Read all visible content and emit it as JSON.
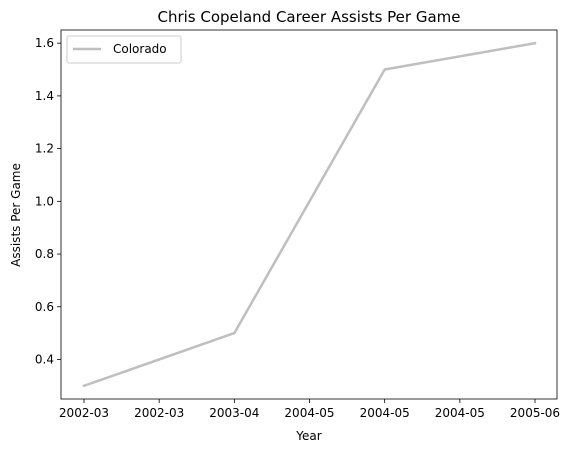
{
  "chart_data": {
    "type": "line",
    "title": "Chris Copeland Career Assists Per Game",
    "xlabel": "Year",
    "ylabel": "Assists Per Game",
    "x_tick_labels": [
      "2002-03",
      "2002-03",
      "2003-04",
      "2004-05",
      "2004-05",
      "2004-05",
      "2005-06"
    ],
    "y_ticks": [
      0.4,
      0.6,
      0.8,
      1.0,
      1.2,
      1.4,
      1.6
    ],
    "ylim": [
      0.25,
      1.65
    ],
    "x": [
      "2002-03",
      "2003-04",
      "2004-05",
      "2005-06"
    ],
    "series": [
      {
        "name": "Colorado",
        "color": "#bfbfbf",
        "values": [
          0.3,
          0.5,
          1.5,
          1.6
        ]
      }
    ],
    "legend": {
      "position": "top-left"
    },
    "grid": false
  }
}
